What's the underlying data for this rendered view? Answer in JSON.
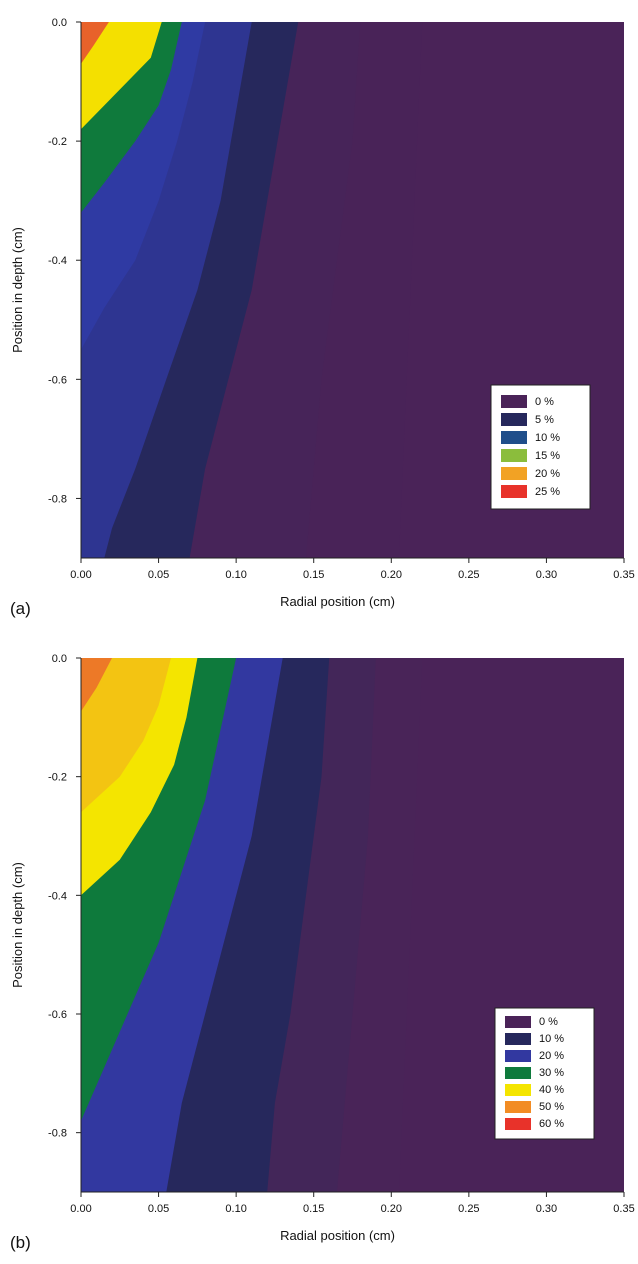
{
  "chart_data": [
    {
      "type": "heatmap",
      "panel_label": "(a)",
      "xlabel": "Radial position (cm)",
      "ylabel": "Position in depth (cm)",
      "xlim": [
        0,
        0.35
      ],
      "ylim": [
        -0.9,
        0
      ],
      "x_ticks": [
        "0.00",
        "0.05",
        "0.10",
        "0.15",
        "0.20",
        "0.25",
        "0.30",
        "0.35"
      ],
      "x_tick_values": [
        0,
        0.05,
        0.1,
        0.15,
        0.2,
        0.25,
        0.3,
        0.35
      ],
      "y_ticks": [
        "0.0",
        "-0.2",
        "-0.4",
        "-0.6",
        "-0.8"
      ],
      "y_tick_values": [
        0,
        -0.2,
        -0.4,
        -0.6,
        -0.8
      ],
      "legend_position": "lower-right",
      "legend": [
        {
          "label": "0 %",
          "value": 0,
          "color": "#4a2358"
        },
        {
          "label": "5 %",
          "value": 5,
          "color": "#26285c"
        },
        {
          "label": "10 %",
          "value": 10,
          "color": "#1f4e8a"
        },
        {
          "label": "15 %",
          "value": 15,
          "color": "#8bbd3c"
        },
        {
          "label": "20 %",
          "value": 20,
          "color": "#f2a224"
        },
        {
          "label": "25 %",
          "value": 25,
          "color": "#e8322a"
        }
      ],
      "isolines": [
        {
          "value": 25,
          "points": [
            [
              0.018,
              0
            ],
            [
              0.008,
              -0.04
            ],
            [
              0,
              -0.07
            ]
          ]
        },
        {
          "value": 20,
          "points": [
            [
              0.052,
              0
            ],
            [
              0.045,
              -0.06
            ],
            [
              0.03,
              -0.1
            ],
            [
              0.015,
              -0.14
            ],
            [
              0,
              -0.18
            ]
          ]
        },
        {
          "value": 15,
          "points": [
            [
              0.065,
              0
            ],
            [
              0.058,
              -0.08
            ],
            [
              0.05,
              -0.14
            ],
            [
              0.035,
              -0.2
            ],
            [
              0.015,
              -0.27
            ],
            [
              0,
              -0.32
            ]
          ]
        },
        {
          "value": 10,
          "points": [
            [
              0.08,
              0
            ],
            [
              0.072,
              -0.1
            ],
            [
              0.062,
              -0.2
            ],
            [
              0.05,
              -0.3
            ],
            [
              0.035,
              -0.4
            ],
            [
              0.015,
              -0.48
            ],
            [
              0,
              -0.55
            ]
          ]
        },
        {
          "value": 7,
          "points": [
            [
              0.11,
              0
            ],
            [
              0.1,
              -0.15
            ],
            [
              0.09,
              -0.3
            ],
            [
              0.075,
              -0.45
            ],
            [
              0.055,
              -0.6
            ],
            [
              0.035,
              -0.75
            ],
            [
              0.02,
              -0.85
            ],
            [
              0.015,
              -0.9
            ]
          ]
        },
        {
          "value": 5,
          "points": [
            [
              0.14,
              0
            ],
            [
              0.13,
              -0.15
            ],
            [
              0.12,
              -0.3
            ],
            [
              0.11,
              -0.45
            ],
            [
              0.095,
              -0.6
            ],
            [
              0.08,
              -0.75
            ],
            [
              0.07,
              -0.9
            ]
          ]
        },
        {
          "value": 2,
          "points": [
            [
              0.18,
              0
            ],
            [
              0.175,
              -0.2
            ],
            [
              0.165,
              -0.4
            ],
            [
              0.155,
              -0.6
            ],
            [
              0.15,
              -0.75
            ],
            [
              0.145,
              -0.9
            ]
          ]
        },
        {
          "value": 0.5,
          "points": [
            [
              0.22,
              0
            ],
            [
              0.215,
              -0.3
            ],
            [
              0.21,
              -0.6
            ],
            [
              0.205,
              -0.9
            ]
          ]
        }
      ]
    },
    {
      "type": "heatmap",
      "panel_label": "(b)",
      "xlabel": "Radial position (cm)",
      "ylabel": "Position in depth (cm)",
      "xlim": [
        0,
        0.35
      ],
      "ylim": [
        -0.9,
        0
      ],
      "x_ticks": [
        "0.00",
        "0.05",
        "0.10",
        "0.15",
        "0.20",
        "0.25",
        "0.30",
        "0.35"
      ],
      "x_tick_values": [
        0,
        0.05,
        0.1,
        0.15,
        0.2,
        0.25,
        0.3,
        0.35
      ],
      "y_ticks": [
        "0.0",
        "-0.2",
        "-0.4",
        "-0.6",
        "-0.8"
      ],
      "y_tick_values": [
        0,
        -0.2,
        -0.4,
        -0.6,
        -0.8
      ],
      "legend_position": "lower-right",
      "legend": [
        {
          "label": "0 %",
          "value": 0,
          "color": "#4a2358"
        },
        {
          "label": "10 %",
          "value": 10,
          "color": "#26285c"
        },
        {
          "label": "20 %",
          "value": 20,
          "color": "#3238a0"
        },
        {
          "label": "30 %",
          "value": 30,
          "color": "#0e7a3c"
        },
        {
          "label": "40 %",
          "value": 40,
          "color": "#f4e500"
        },
        {
          "label": "50 %",
          "value": 50,
          "color": "#f28c24"
        },
        {
          "label": "60 %",
          "value": 60,
          "color": "#e8322a"
        }
      ],
      "isolines": [
        {
          "value": 55,
          "points": [
            [
              0.02,
              0
            ],
            [
              0.01,
              -0.05
            ],
            [
              0,
              -0.09
            ]
          ]
        },
        {
          "value": 45,
          "points": [
            [
              0.058,
              0
            ],
            [
              0.05,
              -0.08
            ],
            [
              0.04,
              -0.14
            ],
            [
              0.025,
              -0.2
            ],
            [
              0,
              -0.26
            ]
          ]
        },
        {
          "value": 40,
          "points": [
            [
              0.075,
              0
            ],
            [
              0.068,
              -0.1
            ],
            [
              0.06,
              -0.18
            ],
            [
              0.045,
              -0.26
            ],
            [
              0.025,
              -0.34
            ],
            [
              0,
              -0.4
            ]
          ]
        },
        {
          "value": 30,
          "points": [
            [
              0.1,
              0
            ],
            [
              0.09,
              -0.12
            ],
            [
              0.08,
              -0.24
            ],
            [
              0.065,
              -0.36
            ],
            [
              0.05,
              -0.48
            ],
            [
              0.03,
              -0.6
            ],
            [
              0.01,
              -0.72
            ],
            [
              0,
              -0.78
            ]
          ]
        },
        {
          "value": 20,
          "points": [
            [
              0.13,
              0
            ],
            [
              0.12,
              -0.15
            ],
            [
              0.11,
              -0.3
            ],
            [
              0.095,
              -0.45
            ],
            [
              0.08,
              -0.6
            ],
            [
              0.065,
              -0.75
            ],
            [
              0.055,
              -0.9
            ]
          ]
        },
        {
          "value": 10,
          "points": [
            [
              0.16,
              0
            ],
            [
              0.155,
              -0.2
            ],
            [
              0.145,
              -0.4
            ],
            [
              0.135,
              -0.6
            ],
            [
              0.125,
              -0.75
            ],
            [
              0.12,
              -0.9
            ]
          ]
        },
        {
          "value": 5,
          "points": [
            [
              0.19,
              0
            ],
            [
              0.185,
              -0.3
            ],
            [
              0.175,
              -0.6
            ],
            [
              0.165,
              -0.9
            ]
          ]
        },
        {
          "value": 1,
          "points": [
            [
              0.22,
              0
            ],
            [
              0.215,
              -0.3
            ],
            [
              0.21,
              -0.6
            ],
            [
              0.205,
              -0.9
            ]
          ]
        }
      ]
    }
  ]
}
